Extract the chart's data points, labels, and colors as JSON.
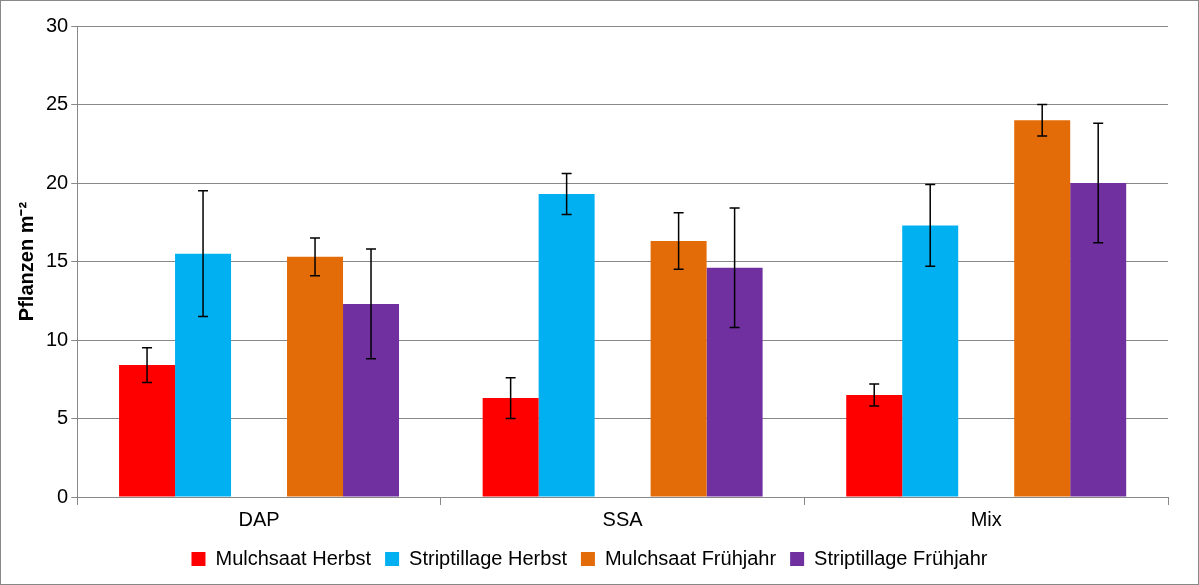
{
  "chart_data": {
    "type": "bar",
    "ylabel": "Pflanzen m⁻²",
    "categories": [
      "DAP",
      "SSA",
      "Mix"
    ],
    "series": [
      {
        "name": "Mulchsaat Herbst",
        "color": "#ff0000",
        "values": [
          8.4,
          6.3,
          6.5
        ],
        "errors": [
          1.1,
          1.3,
          0.7
        ]
      },
      {
        "name": "Striptillage Herbst",
        "color": "#00b0f0",
        "values": [
          15.5,
          19.3,
          17.3
        ],
        "errors": [
          4.0,
          1.3,
          2.6
        ]
      },
      {
        "values": [
          null,
          null,
          null
        ]
      },
      {
        "name": "Mulchsaat Frühjahr",
        "color": "#e36c09",
        "values": [
          15.3,
          16.3,
          24.0
        ],
        "errors": [
          1.2,
          1.8,
          1.0
        ]
      },
      {
        "name": "Striptillage Frühjahr",
        "color": "#7030a0",
        "values": [
          12.3,
          14.6,
          20.0
        ],
        "errors": [
          3.5,
          3.8,
          3.8
        ]
      }
    ],
    "ylim": [
      0,
      30
    ],
    "yticks": [
      0,
      5,
      10,
      15,
      20,
      25,
      30
    ],
    "grid": "y",
    "legend": "bottom"
  }
}
